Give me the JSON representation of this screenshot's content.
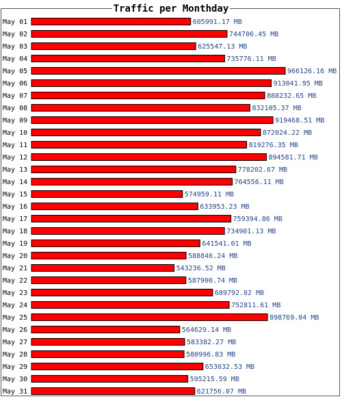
{
  "chart_data": {
    "type": "bar",
    "orientation": "horizontal",
    "title": "Traffic per Monthday",
    "xlabel": "",
    "ylabel": "",
    "grid": false,
    "unit": "MB",
    "bar_color": "#ff0000",
    "value_label_color": "#224488",
    "categories": [
      "May 01",
      "May 02",
      "May 03",
      "May 04",
      "May 05",
      "May 06",
      "May 07",
      "May 08",
      "May 09",
      "May 10",
      "May 11",
      "May 12",
      "May 13",
      "May 14",
      "May 15",
      "May 16",
      "May 17",
      "May 18",
      "May 19",
      "May 20",
      "May 21",
      "May 22",
      "May 23",
      "May 24",
      "May 25",
      "May 26",
      "May 27",
      "May 28",
      "May 29",
      "May 30",
      "May 31"
    ],
    "values": [
      605991.17,
      744706.45,
      625547.13,
      735776.11,
      966126.16,
      913041.95,
      888232.65,
      832105.37,
      919468.51,
      872024.22,
      819276.35,
      894581.71,
      778202.67,
      764556.11,
      574959.11,
      633953.23,
      759394.86,
      734901.13,
      641541.01,
      588846.24,
      543236.52,
      587900.74,
      689792.82,
      752811.61,
      898769.04,
      564629.14,
      583382.27,
      580996.83,
      653032.53,
      595215.59,
      621756.07
    ],
    "value_labels": [
      "605991.17 MB",
      "744706.45 MB",
      "625547.13 MB",
      "735776.11 MB",
      "966126.16 MB",
      "913041.95 MB",
      "888232.65 MB",
      "832105.37 MB",
      "919468.51 MB",
      "872024.22 MB",
      "819276.35 MB",
      "894581.71 MB",
      "778202.67 MB",
      "764556.11 MB",
      "574959.11 MB",
      "633953.23 MB",
      "759394.86 MB",
      "734901.13 MB",
      "641541.01 MB",
      "588846.24 MB",
      "543236.52 MB",
      "587900.74 MB",
      "689792.82 MB",
      "752811.61 MB",
      "898769.04 MB",
      "564629.14 MB",
      "583382.27 MB",
      "580996.83 MB",
      "653032.53 MB",
      "595215.59 MB",
      "621756.07 MB"
    ]
  }
}
